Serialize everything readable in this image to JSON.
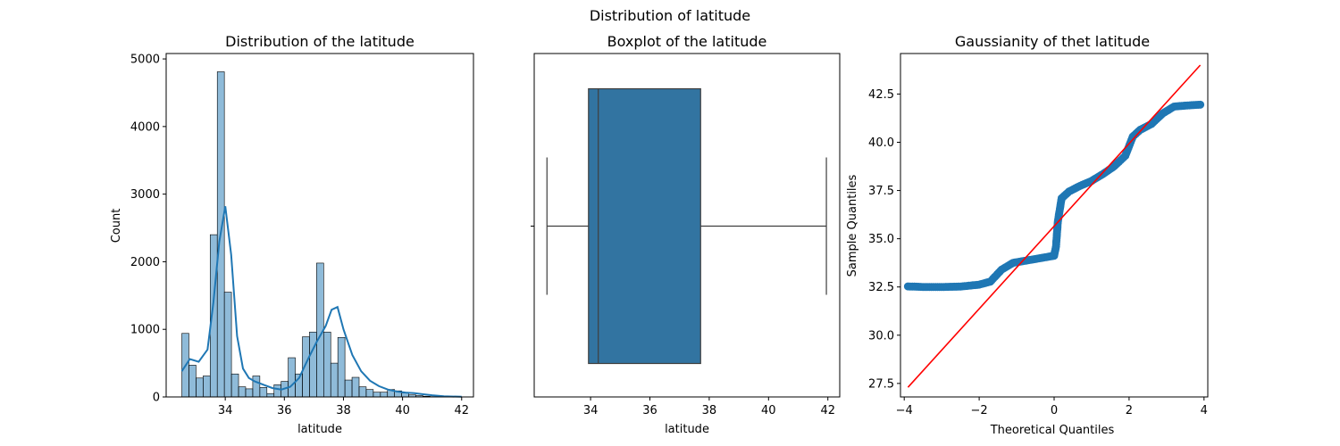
{
  "suptitle": "Distribution of latitude",
  "chart_data": [
    {
      "type": "histogram",
      "title": "Distribution of the latitude",
      "xlabel": "latitude",
      "ylabel": "Count",
      "xlim": [
        32.0,
        42.4
      ],
      "ylim": [
        0,
        5080
      ],
      "xticks": [
        34,
        36,
        38,
        40,
        42
      ],
      "yticks": [
        0,
        1000,
        2000,
        3000,
        4000,
        5000
      ],
      "bin_edges": [
        32.53,
        32.77,
        33.01,
        33.25,
        33.49,
        33.73,
        33.97,
        34.21,
        34.45,
        34.69,
        34.93,
        35.17,
        35.41,
        35.65,
        35.89,
        36.13,
        36.37,
        36.61,
        36.85,
        37.09,
        37.33,
        37.57,
        37.81,
        38.05,
        38.29,
        38.53,
        38.77,
        39.01,
        39.25,
        39.49,
        39.73,
        39.97,
        40.21,
        40.45,
        40.69,
        40.93,
        41.17,
        41.41,
        41.65,
        41.89,
        42.0
      ],
      "counts": [
        940,
        470,
        280,
        310,
        2400,
        4810,
        1550,
        340,
        150,
        120,
        310,
        140,
        50,
        180,
        230,
        580,
        340,
        890,
        960,
        1980,
        960,
        500,
        880,
        250,
        290,
        150,
        110,
        70,
        70,
        110,
        90,
        60,
        30,
        20,
        10,
        5,
        3,
        2,
        2,
        1
      ],
      "kde": {
        "x": [
          32.53,
          32.8,
          33.1,
          33.4,
          33.6,
          33.8,
          34.0,
          34.2,
          34.4,
          34.6,
          34.8,
          35.0,
          35.3,
          35.6,
          35.9,
          36.2,
          36.5,
          36.8,
          37.1,
          37.4,
          37.6,
          37.8,
          38.0,
          38.3,
          38.6,
          38.9,
          39.2,
          39.5,
          39.8,
          40.1,
          40.4,
          40.7,
          41.0,
          41.4,
          42.0
        ],
        "y": [
          380,
          560,
          520,
          700,
          1400,
          2300,
          2820,
          2100,
          900,
          420,
          280,
          230,
          180,
          130,
          110,
          150,
          280,
          560,
          820,
          1050,
          1290,
          1330,
          1000,
          620,
          380,
          240,
          160,
          110,
          80,
          65,
          55,
          40,
          25,
          10,
          2
        ]
      },
      "color": "#1f77b4"
    },
    {
      "type": "boxplot",
      "title": "Boxplot of the latitude",
      "xlabel": "latitude",
      "xlim": [
        32.1,
        42.4
      ],
      "xticks": [
        34,
        36,
        38,
        40,
        42
      ],
      "whisker_low": 32.53,
      "q1": 33.93,
      "median": 34.26,
      "q3": 37.71,
      "whisker_high": 41.95,
      "color": "#3274a1"
    },
    {
      "type": "scatter",
      "title": "Gaussianity of thet  latitude",
      "xlabel": "Theoretical Quantiles",
      "ylabel": "Sample Quantiles",
      "xlim": [
        -4.1,
        4.1
      ],
      "ylim": [
        26.8,
        44.6
      ],
      "xticks": [
        -4,
        -2,
        0,
        2,
        4
      ],
      "yticks": [
        27.5,
        30.0,
        32.5,
        35.0,
        37.5,
        40.0,
        42.5
      ],
      "ytick_labels": [
        "27.5",
        "30.0",
        "32.5",
        "35.0",
        "37.5",
        "40.0",
        "42.5"
      ],
      "points": {
        "x": [
          -3.9,
          -3.5,
          -3.0,
          -2.5,
          -2.0,
          -1.7,
          -1.4,
          -1.1,
          -0.8,
          -0.5,
          -0.2,
          0.0,
          0.05,
          0.1,
          0.2,
          0.4,
          0.7,
          1.0,
          1.3,
          1.6,
          1.9,
          2.1,
          2.3,
          2.6,
          2.9,
          3.2,
          3.5,
          3.9
        ],
        "y": [
          32.53,
          32.5,
          32.5,
          32.52,
          32.62,
          32.78,
          33.4,
          33.75,
          33.85,
          33.95,
          34.05,
          34.12,
          34.6,
          35.9,
          37.1,
          37.45,
          37.75,
          38.0,
          38.35,
          38.75,
          39.3,
          40.3,
          40.65,
          40.95,
          41.5,
          41.85,
          41.9,
          41.95
        ]
      },
      "reference_line": {
        "x": [
          -3.9,
          3.9
        ],
        "y": [
          27.3,
          44.0
        ]
      },
      "point_color": "#1f77b4",
      "line_color": "#ff0000"
    }
  ]
}
